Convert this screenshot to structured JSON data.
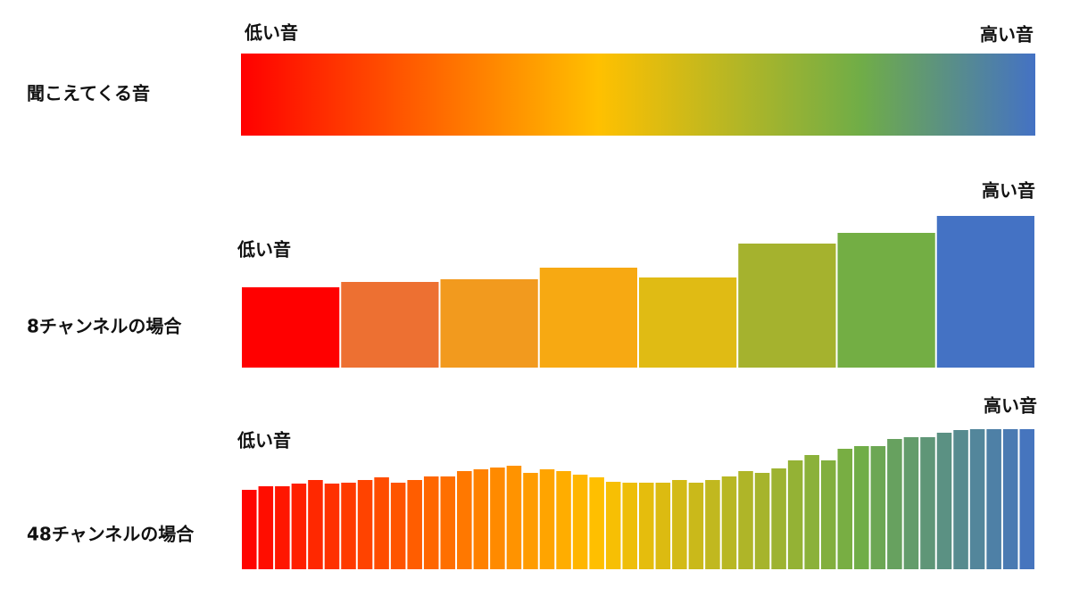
{
  "heard_sound": {
    "label": "聞こえてくる音",
    "low": "低い音",
    "high": "高い音"
  },
  "channels_8": {
    "label": "8チャンネルの場合",
    "low": "低い音",
    "high": "高い音"
  },
  "channels_48": {
    "label": "48チャンネルの場合",
    "low": "低い音",
    "high": "高い音"
  }
}
